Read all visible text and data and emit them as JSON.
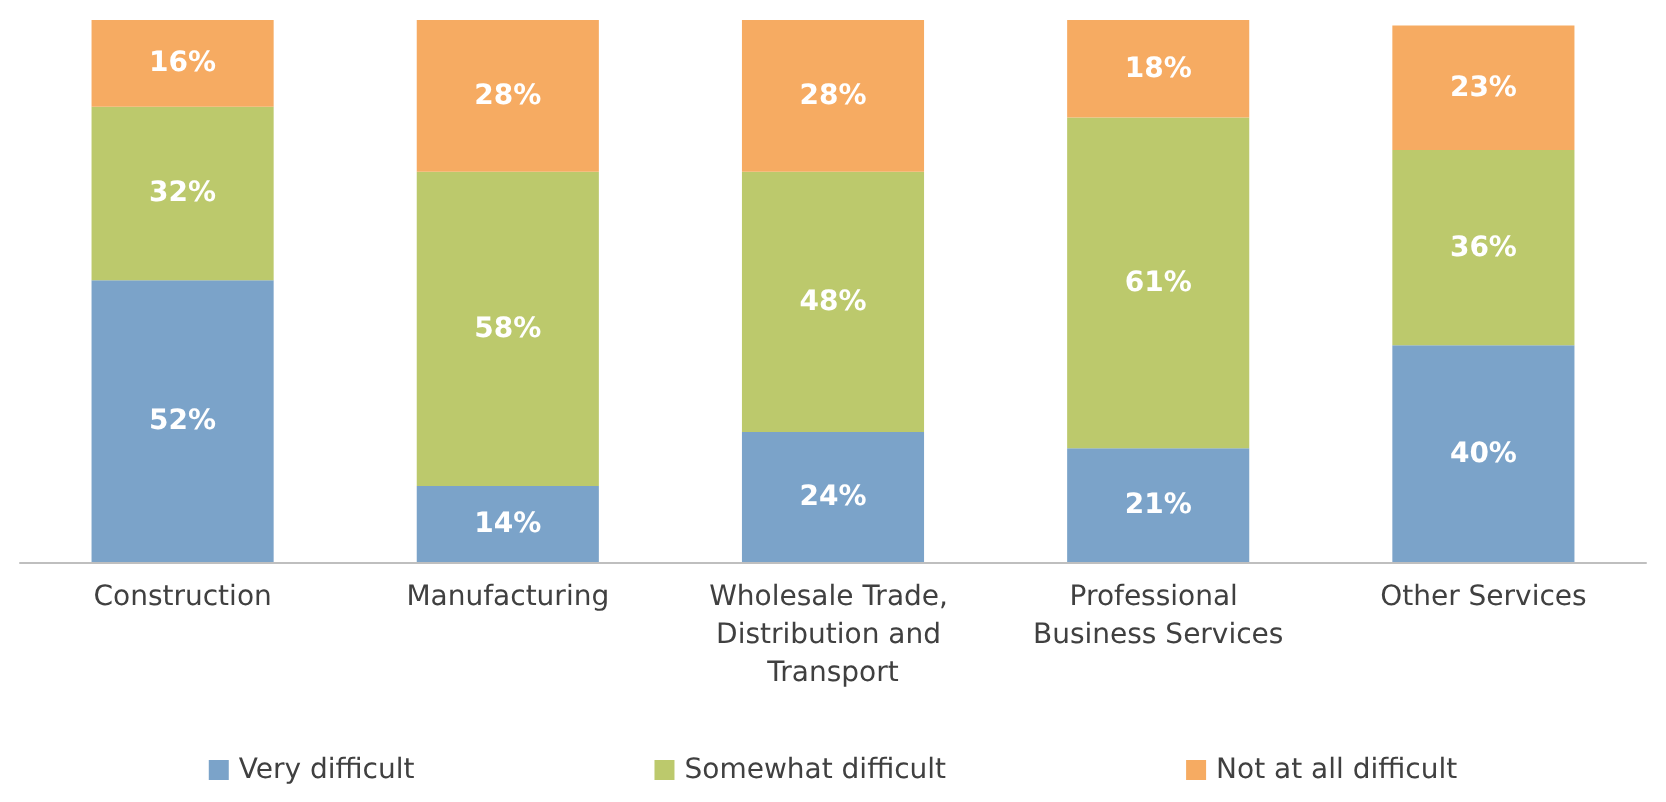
{
  "chart_data": {
    "type": "bar",
    "stacked": true,
    "legend": "bottom",
    "categories": [
      "Construction",
      "Manufacturing",
      "Wholesale Trade, Distribution and Transport",
      "Professional Business Services",
      "Other Services"
    ],
    "series": [
      {
        "name": "Very difficult",
        "color": "#7ba3c9",
        "values": [
          52,
          14,
          24,
          21,
          40
        ],
        "value_labels": [
          "52%",
          "14%",
          "24%",
          "21%",
          "40%"
        ]
      },
      {
        "name": "Somewhat difficult",
        "color": "#bcc96c",
        "values": [
          32,
          58,
          48,
          61,
          36
        ],
        "value_labels": [
          "32%",
          "58%",
          "48%",
          "61%",
          "36%"
        ]
      },
      {
        "name": "Not at all difficult",
        "color": "#f6ab62",
        "values": [
          16,
          28,
          28,
          18,
          23
        ],
        "value_labels": [
          "16%",
          "28%",
          "28%",
          "18%",
          "23%"
        ]
      }
    ]
  }
}
